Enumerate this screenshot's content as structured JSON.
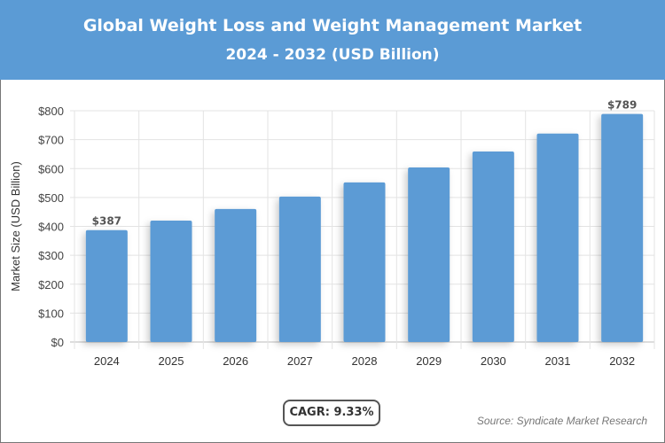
{
  "header": {
    "title": "Global Weight Loss and Weight Management Market",
    "subtitle": "2024 - 2032 (USD Billion)"
  },
  "chart_data": {
    "type": "bar",
    "title": "Global Weight Loss and Weight Management Market",
    "subtitle": "2024 - 2032 (USD Billion)",
    "categories": [
      "2024",
      "2025",
      "2026",
      "2027",
      "2028",
      "2029",
      "2030",
      "2031",
      "2032"
    ],
    "values": [
      387,
      420,
      460,
      503,
      552,
      604,
      659,
      721,
      789
    ],
    "data_labels": {
      "0": "$387",
      "8": "$789"
    },
    "ylabel": "Market Size (USD Billion)",
    "xlabel": "",
    "ylim": [
      0,
      800
    ],
    "yticks": [
      "$0",
      "$100",
      "$200",
      "$300",
      "$400",
      "$500",
      "$600",
      "$700",
      "$800"
    ],
    "grid": true,
    "bar_color": "#5b9bd5"
  },
  "footer": {
    "cagr": "CAGR: 9.33%",
    "source": "Source: Syndicate Market Research"
  }
}
